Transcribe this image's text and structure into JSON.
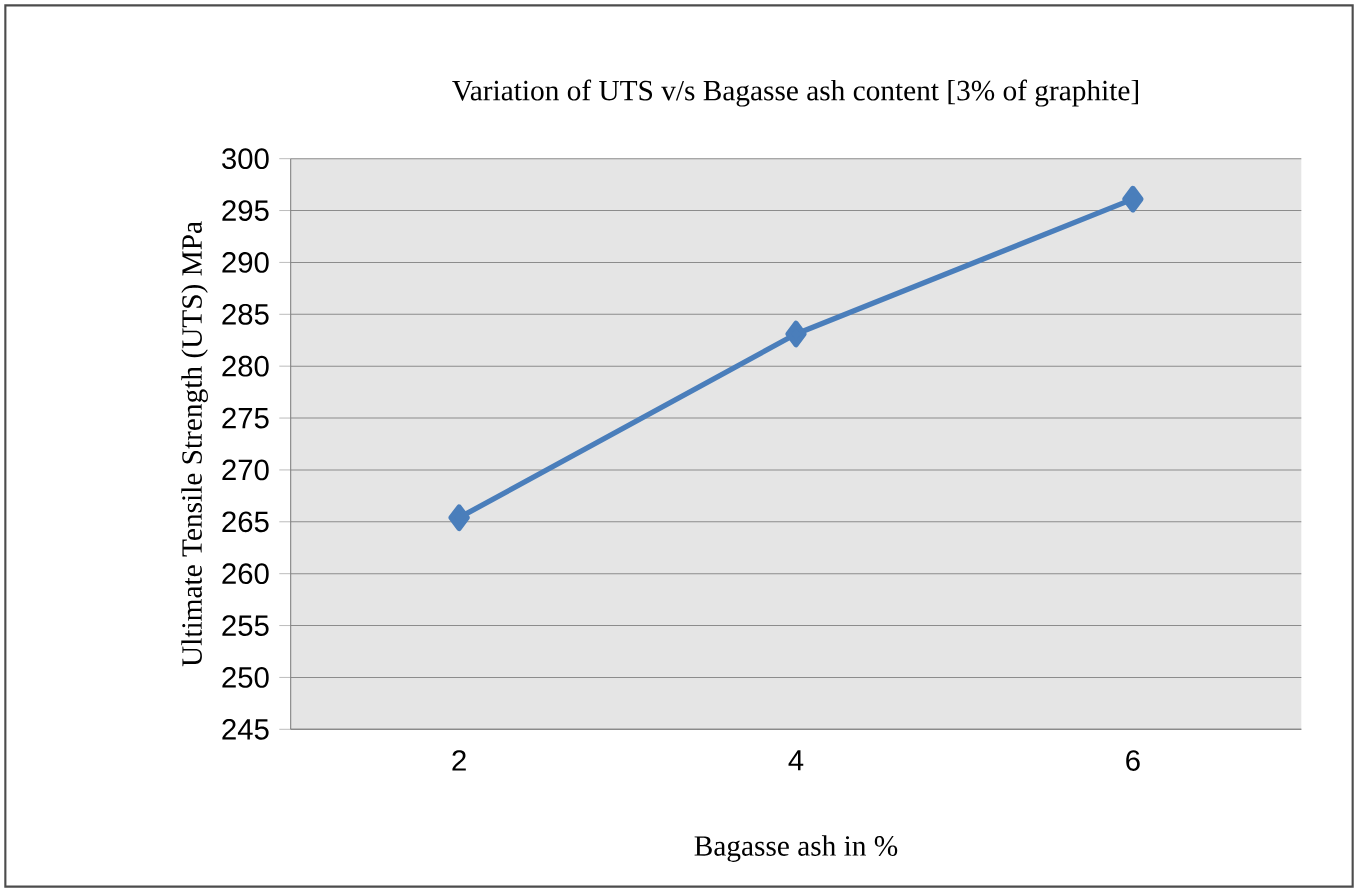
{
  "chart_data": {
    "type": "line",
    "title": "Variation of UTS v/s Bagasse ash content  [3% of graphite]",
    "xlabel": "Bagasse ash in %",
    "ylabel": "Ultimate Tensile Strength (UTS) MPa",
    "categories": [
      "2",
      "4",
      "6"
    ],
    "series": [
      {
        "color": "#4a7ebb",
        "values": [
          265.4,
          283.1,
          296.1
        ]
      }
    ],
    "ylim": [
      245,
      300
    ],
    "yticks": [
      245,
      250,
      255,
      260,
      265,
      270,
      275,
      280,
      285,
      290,
      295,
      300
    ],
    "grid": "y",
    "marker": "diamond",
    "line_style": "solid"
  }
}
